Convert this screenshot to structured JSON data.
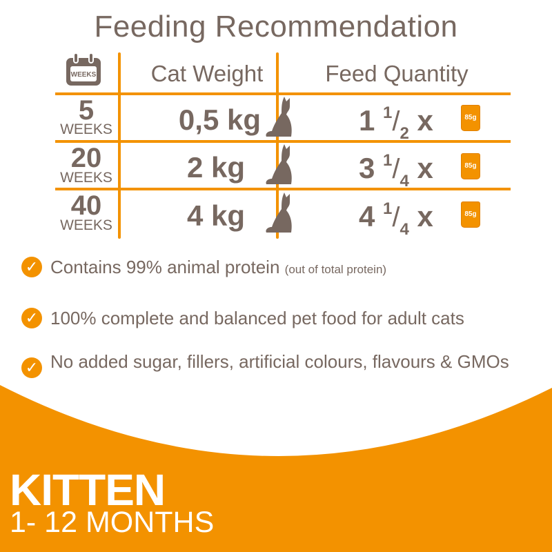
{
  "title": "Feeding Recommendation",
  "colors": {
    "accent": "#f39200",
    "text": "#776860",
    "background": "#ffffff"
  },
  "table": {
    "calendar_icon_label": "WEEKS",
    "headers": {
      "weight": "Cat Weight",
      "feed": "Feed Quantity"
    },
    "rows": [
      {
        "weeks": "5",
        "weeks_label": "WEEKS",
        "weight": "0,5 kg",
        "feed_whole": "1",
        "feed_num": "1",
        "feed_den": "2",
        "feed_times": "x",
        "pouch_label": "85g"
      },
      {
        "weeks": "20",
        "weeks_label": "WEEKS",
        "weight": "2 kg",
        "feed_whole": "3",
        "feed_num": "1",
        "feed_den": "4",
        "feed_times": "x",
        "pouch_label": "85g"
      },
      {
        "weeks": "40",
        "weeks_label": "WEEKS",
        "weight": "4 kg",
        "feed_whole": "4",
        "feed_num": "1",
        "feed_den": "4",
        "feed_times": "x",
        "pouch_label": "85g"
      }
    ]
  },
  "bullets": [
    {
      "text": "Contains 99% animal protein",
      "note": "(out of total protein)"
    },
    {
      "text": "100% complete and balanced pet food for adult cats"
    },
    {
      "text": "No added sugar, fillers, artificial colours, flavours & GMOs"
    }
  ],
  "footer": {
    "line1": "KITTEN",
    "line2": "1- 12 MONTHS"
  }
}
